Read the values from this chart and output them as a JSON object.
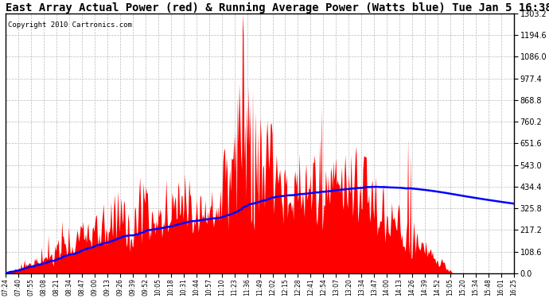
{
  "title": "East Array Actual Power (red) & Running Average Power (Watts blue) Tue Jan 5 16:38",
  "copyright": "Copyright 2010 Cartronics.com",
  "ylim": [
    0,
    1303.2
  ],
  "yticks": [
    0.0,
    108.6,
    217.2,
    325.8,
    434.4,
    543.0,
    651.6,
    760.2,
    868.8,
    977.4,
    1086.0,
    1194.6,
    1303.2
  ],
  "bg_color": "#ffffff",
  "grid_color": "#bbbbbb",
  "bar_color": "red",
  "avg_color": "blue",
  "title_fontsize": 10,
  "copyright_fontsize": 6.5,
  "xtick_labels": [
    "07:24",
    "07:40",
    "07:55",
    "08:08",
    "08:21",
    "08:34",
    "08:47",
    "09:00",
    "09:13",
    "09:26",
    "09:39",
    "09:52",
    "10:05",
    "10:18",
    "10:31",
    "10:44",
    "10:57",
    "11:10",
    "11:23",
    "11:36",
    "11:49",
    "12:02",
    "12:15",
    "12:28",
    "12:41",
    "12:54",
    "13:07",
    "13:20",
    "13:34",
    "13:47",
    "14:00",
    "14:13",
    "14:26",
    "14:39",
    "14:52",
    "15:05",
    "15:20",
    "15:34",
    "15:48",
    "16:01",
    "16:25"
  ],
  "n_points": 600
}
